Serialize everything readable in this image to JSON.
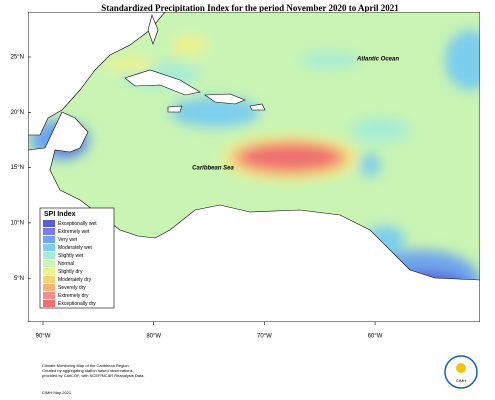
{
  "header": {
    "title": "Standardized Precipitation Index for the period November 2020 to April 2021"
  },
  "map": {
    "lat_ticks": [
      "25°N",
      "20°N",
      "15°N",
      "10°N",
      "5°N"
    ],
    "lon_ticks": [
      "90°W",
      "80°W",
      "70°W",
      "60°W"
    ],
    "labels": {
      "atlantic": "Atlantic Ocean",
      "caribbean": "Caribbean Sea"
    }
  },
  "legend": {
    "title": "SPI Index",
    "items": [
      {
        "label": "Exceptionally wet",
        "color": "#5b5bd6"
      },
      {
        "label": "Extremely wet",
        "color": "#7b7bea"
      },
      {
        "label": "Very wet",
        "color": "#6ea6ee"
      },
      {
        "label": "Moderately wet",
        "color": "#7ccdee"
      },
      {
        "label": "Slightly wet",
        "color": "#a6ecd6"
      },
      {
        "label": "Normal",
        "color": "#c9f4b4"
      },
      {
        "label": "Slightly dry",
        "color": "#eef28e"
      },
      {
        "label": "Moderately dry",
        "color": "#f6d474"
      },
      {
        "label": "Severely dry",
        "color": "#f7b276"
      },
      {
        "label": "Extremely dry",
        "color": "#f48e8e"
      },
      {
        "label": "Exceptionally dry",
        "color": "#ee6f6f"
      }
    ]
  },
  "footer": {
    "lines": [
      "Climate Monitoring Map of the Caribbean Region.",
      "Created by aggregating station based observations,",
      "provided by CariCOF, with NCEP/NCAR Reanalysis Data."
    ],
    "credit": "CIMH May-2021",
    "logo": "CIMH"
  }
}
